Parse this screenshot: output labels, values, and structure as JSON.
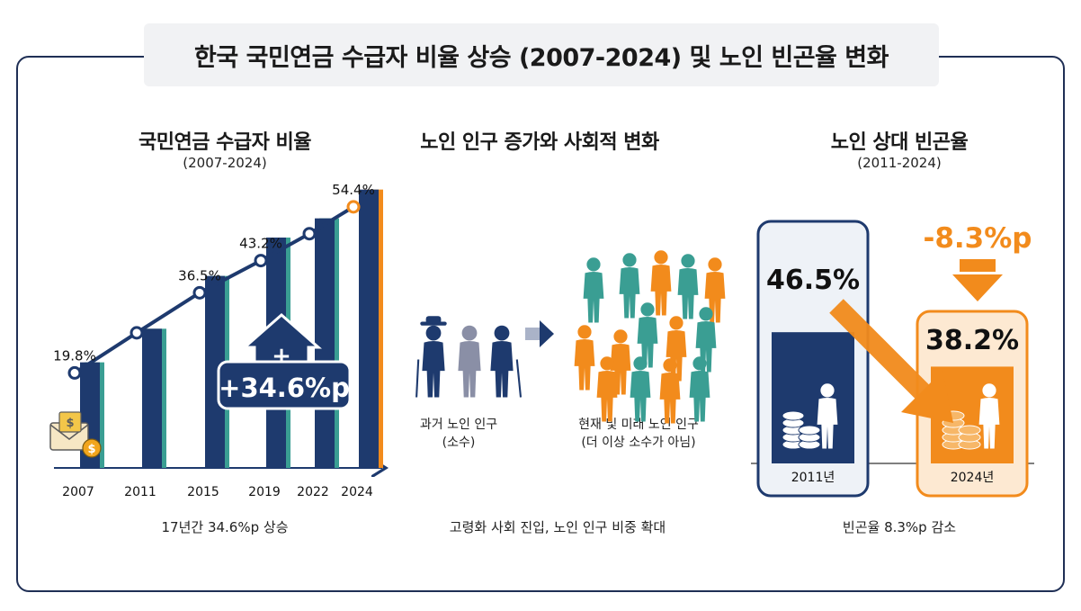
{
  "title": "한국 국민연금 수급자 비율 상승 (2007-2024) 및 노인 빈곤율 변화",
  "colors": {
    "navy": "#1e3a6e",
    "teal": "#3a9e93",
    "orange": "#f28b1c",
    "light_orange": "#fde9d2",
    "light_navy_bg": "#eef2f7",
    "gray_person": "#8a8fa6"
  },
  "left_panel": {
    "heading": "국민연금 수급자 비율",
    "subheading": "(2007-2024)",
    "footer": "17년간 34.6%p 상승",
    "callout": "+34.6%p",
    "callout_plus": "+",
    "icon": "envelope-money-icon"
  },
  "middle_panel": {
    "heading": "노인 인구 증가와 사회적 변화",
    "past_label_1": "과거 노인 인구",
    "past_label_2": "(소수)",
    "future_label_1": "현재 및 미래 노인 인구",
    "future_label_2": "(더 이상 소수가 아님)",
    "footer": "고령화 사회 진입, 노인 인구 비중 확대"
  },
  "right_panel": {
    "heading": "노인 상대 빈곤율",
    "subheading": "(2011-2024)",
    "footer": "빈곤율 8.3%p 감소",
    "change_label": "-8.3%p"
  },
  "chart_data": [
    {
      "type": "line",
      "title": "국민연금 수급자 비율",
      "subtitle": "(2007-2024)",
      "categories": [
        "2007",
        "2011",
        "2015",
        "2019",
        "2022",
        "2024"
      ],
      "values": [
        19.8,
        null,
        36.5,
        43.2,
        null,
        54.4
      ],
      "value_labels": [
        "19.8%",
        "",
        "36.5%",
        "43.2%",
        "",
        "54.4%"
      ],
      "bar_values_estimated": [
        22,
        29,
        40,
        48,
        52,
        58
      ],
      "ylim": [
        0,
        60
      ],
      "annotation": "+34.6%p",
      "xlabel": "",
      "ylabel": ""
    },
    {
      "type": "bar",
      "title": "노인 상대 빈곤율",
      "subtitle": "(2011-2024)",
      "categories": [
        "2011년",
        "2024년"
      ],
      "values": [
        46.5,
        38.2
      ],
      "value_labels": [
        "46.5%",
        "38.2%"
      ],
      "annotation": "-8.3%p"
    }
  ]
}
